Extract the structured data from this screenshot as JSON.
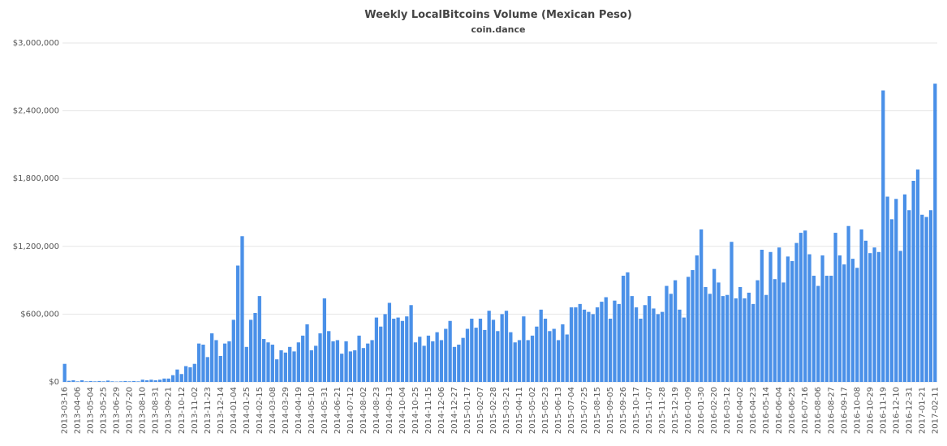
{
  "chart_data": {
    "type": "bar",
    "title": "Weekly LocalBitcoins Volume (Mexican Peso)",
    "subtitle": "coin.dance",
    "color": "#4a90e8",
    "grid": true,
    "categories": [
      "2013-03-16",
      null,
      null,
      "2013-04-06",
      null,
      null,
      "2013-05-04",
      null,
      null,
      "2013-05-25",
      null,
      null,
      "2013-06-29",
      null,
      null,
      "2013-07-20",
      null,
      null,
      "2013-08-10",
      null,
      null,
      "2013-08-31",
      null,
      null,
      "2013-09-21",
      null,
      null,
      "2013-10-12",
      null,
      null,
      "2013-11-02",
      null,
      null,
      "2013-11-23",
      null,
      null,
      "2013-12-14",
      null,
      null,
      "2014-01-04",
      null,
      null,
      "2014-01-25",
      null,
      null,
      "2014-02-15",
      null,
      null,
      "2014-03-08",
      null,
      null,
      "2014-03-29",
      null,
      null,
      "2014-04-19",
      null,
      null,
      "2014-05-10",
      null,
      null,
      "2014-05-31",
      null,
      null,
      "2014-06-21",
      null,
      null,
      "2014-07-12",
      null,
      null,
      "2014-08-02",
      null,
      null,
      "2014-08-23",
      null,
      null,
      "2014-09-13",
      null,
      null,
      "2014-10-04",
      null,
      null,
      "2014-10-25",
      null,
      null,
      "2014-11-15",
      null,
      null,
      "2014-12-06",
      null,
      null,
      "2014-12-27",
      null,
      null,
      "2015-01-17",
      null,
      null,
      "2015-02-07",
      null,
      null,
      "2015-02-28",
      null,
      null,
      "2015-03-21",
      null,
      null,
      "2015-04-11",
      null,
      null,
      "2015-05-02",
      null,
      null,
      "2015-05-23",
      null,
      null,
      "2015-06-13",
      null,
      null,
      "2015-07-04",
      null,
      null,
      "2015-07-25",
      null,
      null,
      "2015-08-15",
      null,
      null,
      "2015-09-05",
      null,
      null,
      "2015-09-26",
      null,
      null,
      "2015-10-17",
      null,
      null,
      "2015-11-07",
      null,
      null,
      "2015-11-28",
      null,
      null,
      "2015-12-19",
      null,
      null,
      "2016-01-09",
      null,
      null,
      "2016-01-30",
      null,
      null,
      "2016-02-20",
      null,
      null,
      "2016-03-12",
      null,
      null,
      "2016-04-02",
      null,
      null,
      "2016-04-23",
      null,
      null,
      "2016-05-14",
      null,
      null,
      "2016-06-04",
      null,
      null,
      "2016-06-25",
      null,
      null,
      "2016-07-16",
      null,
      null,
      "2016-08-06",
      null,
      null,
      "2016-08-27",
      null,
      null,
      "2016-09-17",
      null,
      null,
      "2016-10-08",
      null,
      null,
      "2016-10-29",
      null,
      null,
      "2016-11-19",
      null,
      null,
      "2016-12-10",
      null,
      null,
      "2016-12-31",
      null,
      null,
      "2017-01-21",
      null,
      null,
      "2017-02-11"
    ],
    "values": [
      160000,
      10000,
      15000,
      5000,
      15000,
      5000,
      8000,
      5000,
      8000,
      5000,
      12000,
      5000,
      3000,
      5000,
      8000,
      5000,
      8000,
      5000,
      20000,
      15000,
      20000,
      15000,
      20000,
      30000,
      30000,
      60000,
      110000,
      70000,
      140000,
      130000,
      160000,
      340000,
      330000,
      220000,
      430000,
      370000,
      230000,
      340000,
      360000,
      550000,
      1030000,
      1290000,
      310000,
      550000,
      610000,
      760000,
      380000,
      350000,
      330000,
      200000,
      280000,
      260000,
      310000,
      270000,
      350000,
      410000,
      510000,
      280000,
      320000,
      430000,
      740000,
      450000,
      360000,
      370000,
      250000,
      360000,
      270000,
      280000,
      410000,
      300000,
      340000,
      370000,
      570000,
      490000,
      600000,
      700000,
      560000,
      570000,
      540000,
      580000,
      680000,
      350000,
      400000,
      320000,
      410000,
      360000,
      440000,
      370000,
      470000,
      540000,
      310000,
      330000,
      390000,
      470000,
      560000,
      480000,
      560000,
      460000,
      630000,
      550000,
      450000,
      600000,
      630000,
      440000,
      350000,
      370000,
      580000,
      370000,
      410000,
      490000,
      640000,
      560000,
      450000,
      470000,
      370000,
      510000,
      420000,
      660000,
      660000,
      690000,
      640000,
      620000,
      600000,
      660000,
      710000,
      750000,
      560000,
      720000,
      690000,
      940000,
      970000,
      760000,
      660000,
      560000,
      680000,
      760000,
      650000,
      600000,
      620000,
      850000,
      780000,
      900000,
      640000,
      570000,
      930000,
      990000,
      1120000,
      1350000,
      840000,
      780000,
      1000000,
      880000,
      760000,
      770000,
      1240000,
      740000,
      840000,
      740000,
      790000,
      690000,
      900000,
      1170000,
      770000,
      1150000,
      910000,
      1190000,
      880000,
      1110000,
      1070000,
      1230000,
      1320000,
      1340000,
      1130000,
      940000,
      850000,
      1120000,
      940000,
      940000,
      1320000,
      1120000,
      1040000,
      1380000,
      1090000,
      1010000,
      1350000,
      1250000,
      1140000,
      1190000,
      1150000,
      2580000,
      1640000,
      1440000,
      1620000,
      1160000,
      1660000,
      1520000,
      1780000,
      1880000,
      1480000,
      1460000,
      1520000,
      2640000
    ],
    "ylim": [
      0,
      3000000
    ],
    "yticks": [
      {
        "value": 0,
        "label": "$0"
      },
      {
        "value": 600000,
        "label": "$600,000"
      },
      {
        "value": 1200000,
        "label": "$1,200,000"
      },
      {
        "value": 1800000,
        "label": "$1,800,000"
      },
      {
        "value": 2400000,
        "label": "$2,400,000"
      },
      {
        "value": 3000000,
        "label": "$3,000,000"
      }
    ]
  }
}
